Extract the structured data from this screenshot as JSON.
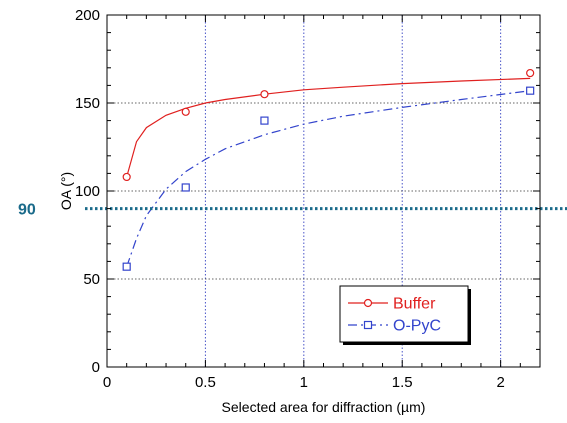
{
  "chart_data": {
    "type": "scatter",
    "xlabel": "Selected area for diffraction (µm)",
    "ylabel": "OA (°)",
    "xlim": [
      0,
      2.2
    ],
    "ylim": [
      0,
      200
    ],
    "x_ticks": [
      0,
      0.5,
      1,
      1.5,
      2
    ],
    "x_tick_labels": [
      "0",
      "0.5",
      "1",
      "1.5",
      "2"
    ],
    "y_ticks": [
      0,
      50,
      100,
      150,
      200
    ],
    "y_tick_labels": [
      "0",
      "50",
      "100",
      "150",
      "200"
    ],
    "grid": true,
    "legend_position": "bottom-right",
    "series": [
      {
        "name": "Buffer",
        "color": "#e0201f",
        "marker": "circle",
        "line_style": "solid",
        "points": [
          [
            0.1,
            108
          ],
          [
            0.4,
            145
          ],
          [
            0.8,
            155
          ],
          [
            2.15,
            167
          ]
        ],
        "fit_curve": [
          [
            0.1,
            108
          ],
          [
            0.15,
            128
          ],
          [
            0.2,
            136
          ],
          [
            0.3,
            143
          ],
          [
            0.4,
            147
          ],
          [
            0.5,
            150
          ],
          [
            0.6,
            152
          ],
          [
            0.8,
            155
          ],
          [
            1.0,
            157.5
          ],
          [
            1.2,
            159
          ],
          [
            1.5,
            161
          ],
          [
            1.8,
            162.5
          ],
          [
            2.15,
            164
          ]
        ]
      },
      {
        "name": "O-PyC",
        "color": "#3344cc",
        "marker": "square",
        "line_style": "dashdot",
        "points": [
          [
            0.1,
            57
          ],
          [
            0.4,
            102
          ],
          [
            0.8,
            140
          ],
          [
            2.15,
            157
          ]
        ],
        "fit_curve": [
          [
            0.1,
            57
          ],
          [
            0.15,
            73
          ],
          [
            0.2,
            86
          ],
          [
            0.3,
            101
          ],
          [
            0.4,
            111
          ],
          [
            0.5,
            118
          ],
          [
            0.6,
            124
          ],
          [
            0.8,
            132
          ],
          [
            1.0,
            138
          ],
          [
            1.2,
            142.5
          ],
          [
            1.5,
            147.5
          ],
          [
            1.8,
            152
          ],
          [
            2.15,
            157
          ]
        ]
      }
    ],
    "reference_line": {
      "y": 90,
      "label": "90",
      "color": "#1a6a8a"
    }
  }
}
